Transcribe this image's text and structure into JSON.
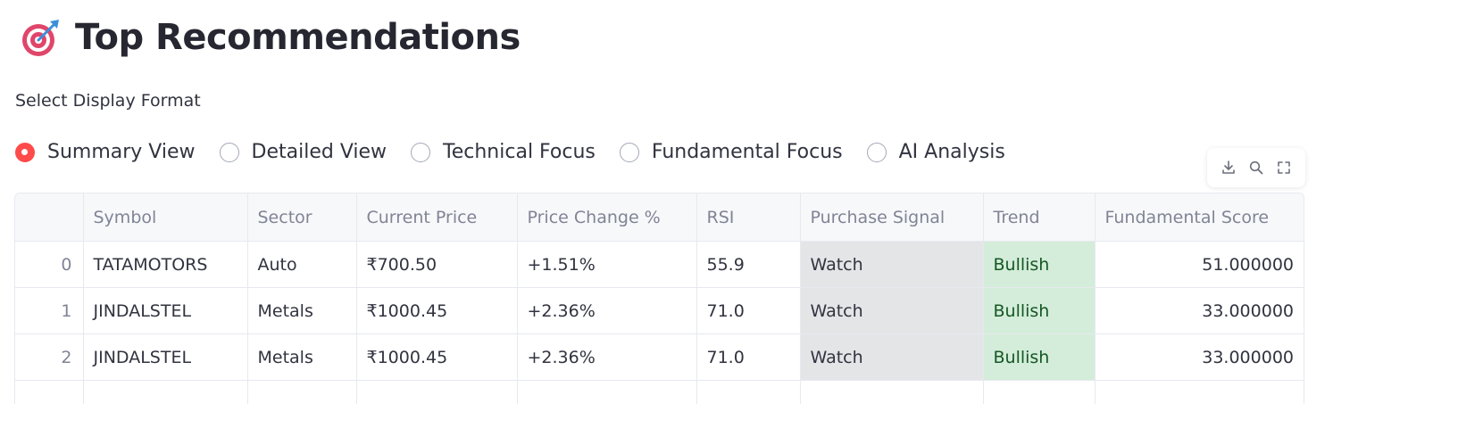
{
  "header": {
    "title": "Top Recommendations",
    "icon": "target-icon"
  },
  "display_format": {
    "label": "Select Display Format",
    "options": [
      {
        "label": "Summary View",
        "selected": true
      },
      {
        "label": "Detailed View",
        "selected": false
      },
      {
        "label": "Technical Focus",
        "selected": false
      },
      {
        "label": "Fundamental Focus",
        "selected": false
      },
      {
        "label": "AI Analysis",
        "selected": false
      }
    ]
  },
  "toolbar": {
    "buttons": [
      "download-icon",
      "search-icon",
      "fullscreen-icon"
    ]
  },
  "table": {
    "columns": [
      "",
      "Symbol",
      "Sector",
      "Current Price",
      "Price Change %",
      "RSI",
      "Purchase Signal",
      "Trend",
      "Fundamental Score"
    ],
    "rows": [
      [
        "0",
        "TATAMOTORS",
        "Auto",
        "₹700.50",
        "+1.51%",
        "55.9",
        "Watch",
        "Bullish",
        "51.000000"
      ],
      [
        "1",
        "JINDALSTEL",
        "Metals",
        "₹1000.45",
        "+2.36%",
        "71.0",
        "Watch",
        "Bullish",
        "33.000000"
      ],
      [
        "2",
        "JINDALSTEL",
        "Metals",
        "₹1000.45",
        "+2.36%",
        "71.0",
        "Watch",
        "Bullish",
        "33.000000"
      ]
    ]
  },
  "colors": {
    "accent": "#ff4b4b",
    "signal_watch_bg": "#e4e5e7",
    "trend_bullish_bg": "#d4edda",
    "trend_bullish_text": "#155724"
  }
}
